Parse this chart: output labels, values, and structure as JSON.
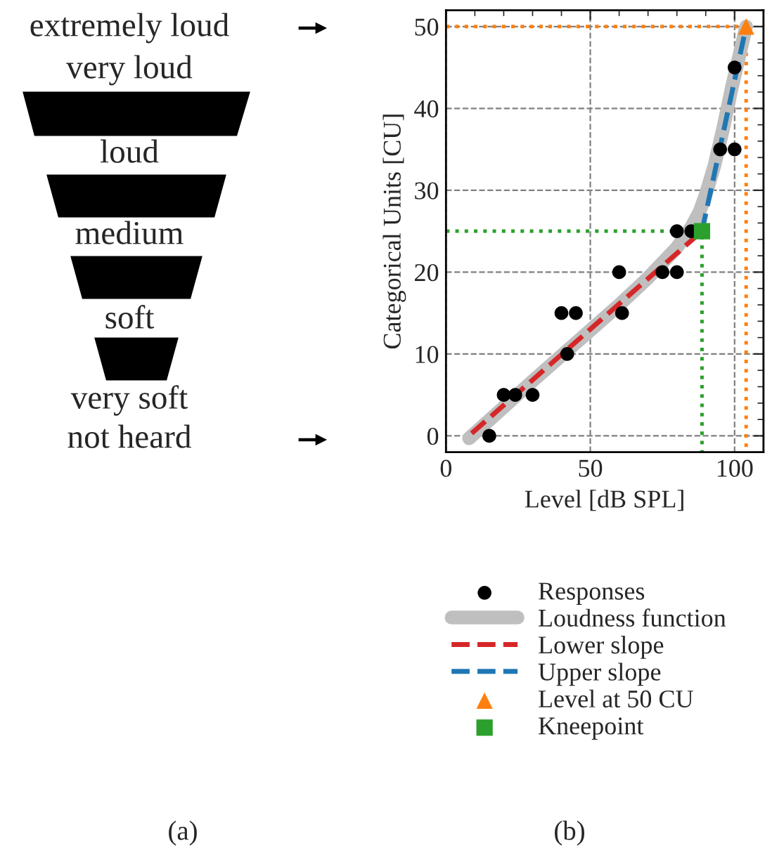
{
  "chart_data": [
    {
      "type": "other",
      "annotations": [
        "extremely loud",
        "very loud",
        "loud",
        "medium",
        "soft",
        "very soft",
        "not heard",
        "(a)"
      ]
    },
    {
      "type": "scatter",
      "xlabel": "Level [dB SPL]",
      "ylabel": "Categorical Units [CU]",
      "xlim": [
        0,
        110
      ],
      "ylim": [
        -2,
        52
      ],
      "xticks": [
        0,
        50,
        100
      ],
      "yticks": [
        0,
        10,
        20,
        30,
        40,
        50
      ],
      "grid": true,
      "legend": "bottom",
      "annotations": [
        "(b)"
      ],
      "series": [
        {
          "name": "Responses",
          "type": "scatter",
          "marker": "circle",
          "color": "#000000",
          "x": [
            15,
            20,
            24,
            30,
            40,
            42,
            45,
            60,
            61,
            75,
            80,
            80,
            85,
            95,
            100,
            100
          ],
          "values": [
            0,
            5,
            5,
            5,
            15,
            10,
            15,
            20,
            15,
            20,
            20,
            25,
            25,
            35,
            35,
            45
          ]
        },
        {
          "name": "Loudness function",
          "type": "line",
          "color": "#bfbfbf",
          "x": [
            8,
            20,
            30,
            40,
            50,
            60,
            70,
            80,
            85,
            88,
            90,
            93,
            96,
            99,
            101,
            103,
            104
          ],
          "values": [
            -0.3,
            3.5,
            6.7,
            9.8,
            12.9,
            16.0,
            19.3,
            23.0,
            25.5,
            27.5,
            29.5,
            33,
            37.5,
            42.5,
            45.5,
            48.5,
            50
          ]
        },
        {
          "name": "Lower slope",
          "type": "line",
          "line_style": "dashed",
          "color": "#d62728",
          "x": [
            8.9,
            88.7
          ],
          "values": [
            0.3,
            25
          ]
        },
        {
          "name": "Upper slope",
          "type": "line",
          "line_style": "dashed",
          "color": "#1f77b4",
          "x": [
            88.7,
            104
          ],
          "values": [
            25,
            50
          ]
        },
        {
          "name": "Level at 50 CU",
          "type": "scatter",
          "marker": "triangle",
          "color": "#ff7f0e",
          "x": [
            104
          ],
          "values": [
            50
          ]
        },
        {
          "name": "Kneepoint",
          "type": "scatter",
          "marker": "square",
          "color": "#2ca02c",
          "x": [
            88.7
          ],
          "values": [
            25
          ]
        },
        {
          "type": "line",
          "line_style": "dotted",
          "color": "#2ca02c",
          "x": [
            0,
            88.7,
            88.7
          ],
          "values": [
            25,
            25,
            -2
          ]
        },
        {
          "type": "line",
          "line_style": "dotted",
          "color": "#ff7f0e",
          "x": [
            0,
            104,
            104
          ],
          "values": [
            50,
            50,
            -2
          ]
        }
      ]
    }
  ]
}
